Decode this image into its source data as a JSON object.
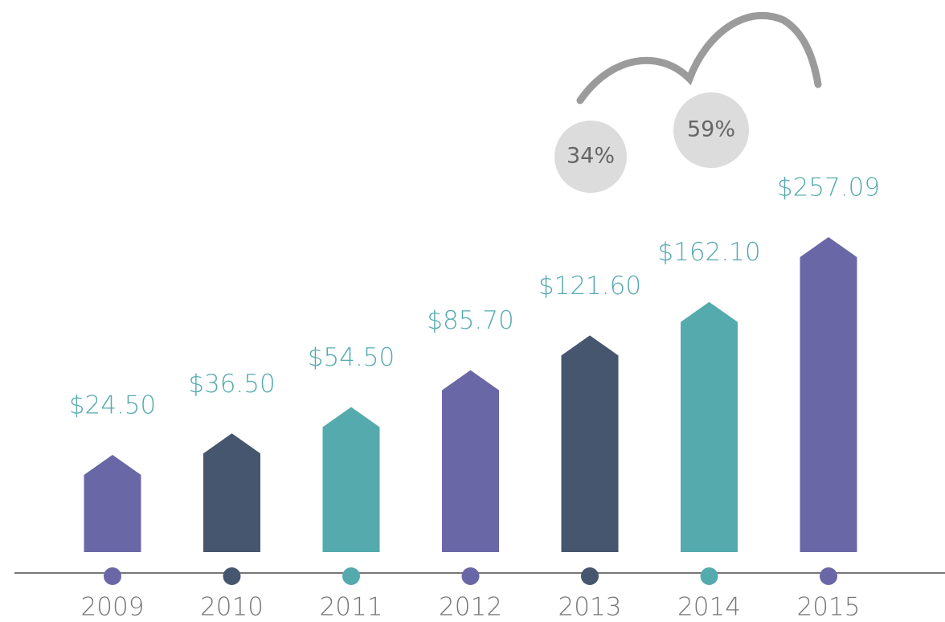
{
  "chart_data": {
    "type": "bar",
    "categories": [
      "2009",
      "2010",
      "2011",
      "2012",
      "2013",
      "2014",
      "2015"
    ],
    "values": [
      24.5,
      36.5,
      54.5,
      85.7,
      121.6,
      162.1,
      257.09
    ],
    "value_labels": [
      "$24.50",
      "$36.50",
      "$54.50",
      "$85.70",
      "$121.60",
      "$162.10",
      "$257.09"
    ],
    "colors": [
      "#6a67a6",
      "#46566f",
      "#55aaae",
      "#6a67a6",
      "#46566f",
      "#55aaae",
      "#6a67a6"
    ],
    "growth": {
      "values": [
        34,
        59
      ],
      "value_labels": [
        "34%",
        "59%"
      ]
    }
  }
}
